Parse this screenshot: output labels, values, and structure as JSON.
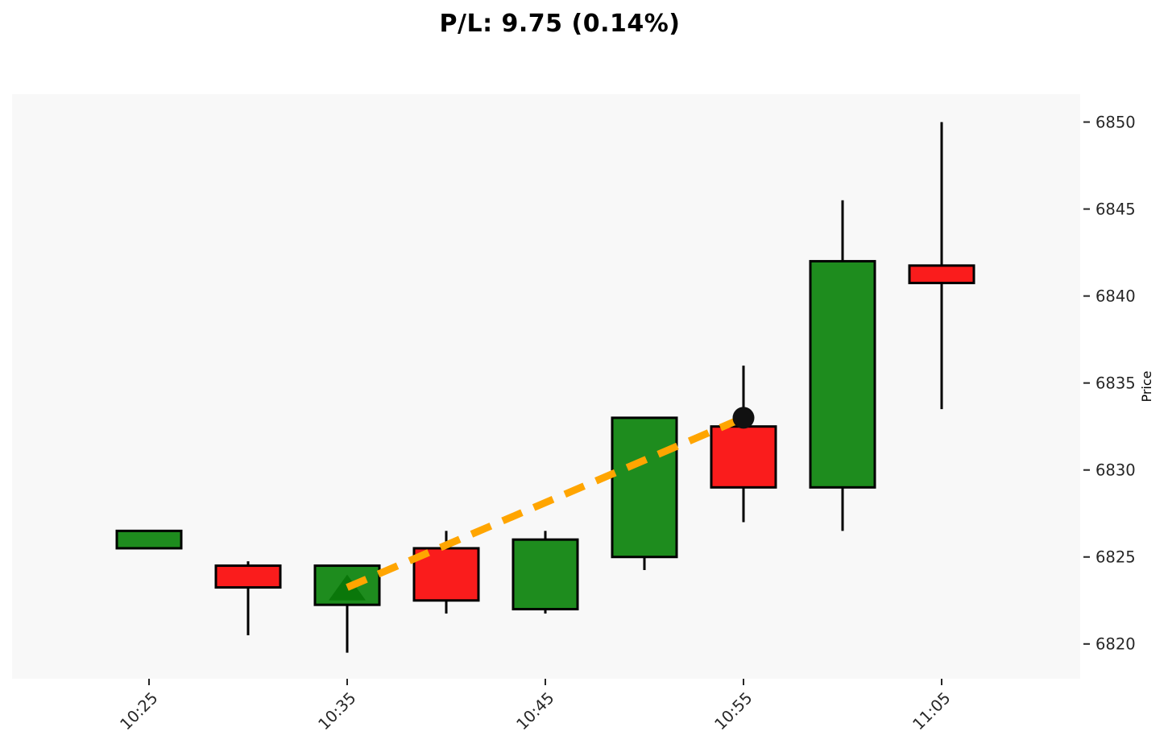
{
  "title": "P/L: 9.75 (0.14%)",
  "chart_data": {
    "type": "candlestick",
    "title": "P/L: 9.75 (0.14%)",
    "xlabel": "",
    "ylabel": "Price",
    "grid": false,
    "legend": "none",
    "y_ticks": [
      6820,
      6825,
      6830,
      6835,
      6840,
      6845,
      6850
    ],
    "ylim": [
      6818.0,
      6851.6
    ],
    "x_tick_labels": [
      "10:25",
      "10:35",
      "10:45",
      "10:55",
      "11:05"
    ],
    "x_tick_candle_indexes": [
      0,
      2,
      4,
      6,
      8
    ],
    "candles": [
      {
        "time": "10:25",
        "open": 6825.5,
        "high": 6826.5,
        "low": 6825.5,
        "close": 6826.5,
        "direction": "up"
      },
      {
        "time": "10:30",
        "open": 6824.5,
        "high": 6824.75,
        "low": 6820.5,
        "close": 6823.25,
        "direction": "down"
      },
      {
        "time": "10:35",
        "open": 6822.25,
        "high": 6824.5,
        "low": 6819.5,
        "close": 6824.5,
        "direction": "up"
      },
      {
        "time": "10:40",
        "open": 6825.5,
        "high": 6826.5,
        "low": 6821.75,
        "close": 6822.5,
        "direction": "down"
      },
      {
        "time": "10:45",
        "open": 6822.0,
        "high": 6826.5,
        "low": 6821.75,
        "close": 6826.0,
        "direction": "up"
      },
      {
        "time": "10:50",
        "open": 6825.0,
        "high": 6833.0,
        "low": 6824.25,
        "close": 6833.0,
        "direction": "up"
      },
      {
        "time": "10:55",
        "open": 6832.5,
        "high": 6836.0,
        "low": 6827.0,
        "close": 6829.0,
        "direction": "down"
      },
      {
        "time": "11:00",
        "open": 6829.0,
        "high": 6845.5,
        "low": 6826.5,
        "close": 6842.0,
        "direction": "up"
      },
      {
        "time": "11:05",
        "open": 6841.75,
        "high": 6850.0,
        "low": 6833.5,
        "close": 6840.75,
        "direction": "down"
      }
    ],
    "trade": {
      "entry": {
        "time": "10:35",
        "price": 6823.25,
        "marker": "triangle-up",
        "color": "#0A770A"
      },
      "exit": {
        "time": "10:55",
        "price": 6833.0,
        "marker": "circle",
        "color": "#111111"
      },
      "pl_points": 9.75,
      "pl_percent": "0.14%",
      "line_color": "#FFA500",
      "line_style": "dashed"
    },
    "colors": {
      "up": "#1E8C1E",
      "down": "#FA1C1C",
      "wick": "#000000",
      "body_border": "#000000",
      "plot_bg": "#F8F8F8",
      "fig_bg": "#FFFFFF",
      "tick_text": "#262626"
    }
  }
}
